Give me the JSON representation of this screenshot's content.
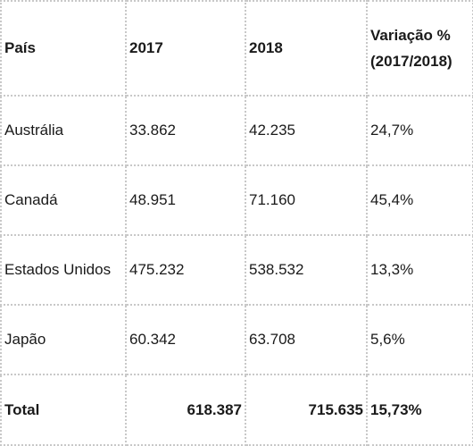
{
  "table": {
    "headers": {
      "country": "País",
      "y2017": "2017",
      "y2018": "2018",
      "variation_line1": "Variação %",
      "variation_line2": "(2017/2018)"
    },
    "rows": [
      {
        "country": "Austrália",
        "y2017": "33.862",
        "y2018": "42.235",
        "variation": "24,7%"
      },
      {
        "country": "Canadá",
        "y2017": "48.951",
        "y2018": "71.160",
        "variation": "45,4%"
      },
      {
        "country": "Estados Unidos",
        "y2017": "475.232",
        "y2018": "538.532",
        "variation": "13,3%"
      },
      {
        "country": "Japão",
        "y2017": "60.342",
        "y2018": "63.708",
        "variation": "5,6%"
      }
    ],
    "total": {
      "label": "Total",
      "y2017": "618.387",
      "y2018": "715.635",
      "variation": "15,73%"
    }
  }
}
